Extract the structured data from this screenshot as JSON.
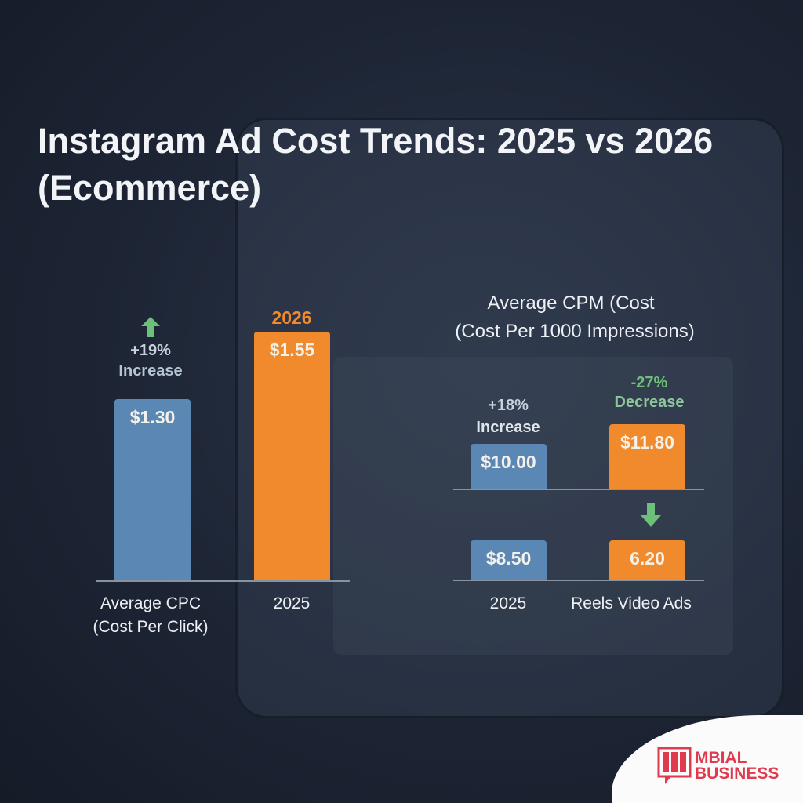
{
  "title": "Instagram Ad Cost Trends: 2025 vs 2026 (Ecommerce)",
  "colors": {
    "year_2025": "#5a87b3",
    "year_2026": "#f08a2c",
    "increase": "#6cc07a",
    "decrease": "#6cc07a",
    "logo": "#e03a4e"
  },
  "chart_data": [
    {
      "type": "bar",
      "category_label": [
        "Average CPC",
        "(Cost Per Click)"
      ],
      "x_label": "2025",
      "series_top_label": "2026",
      "series": [
        {
          "label": "$1.30",
          "value": 1.3,
          "color": "#5a87b3"
        },
        {
          "label": "$1.55",
          "value": 1.55,
          "color": "#f08a2c"
        }
      ],
      "change": {
        "percent": "+19%",
        "text": "Increase",
        "icon": "arrow-up-icon"
      }
    },
    {
      "type": "bar",
      "title": [
        "Average CPM (Cost",
        "(Cost Per 1000 Impressions)"
      ],
      "panels": [
        {
          "left": {
            "label": "$10.00",
            "value": 10.0
          },
          "right": {
            "label": "$11.80",
            "value": 11.8
          },
          "left_change": {
            "percent": "+18%",
            "text": "Increase"
          },
          "right_change": {
            "percent": "-27%",
            "text": "Decrease",
            "icon": "arrow-down-icon"
          }
        },
        {
          "left": {
            "label": "$8.50",
            "value": 8.5
          },
          "right": {
            "label": "6.20",
            "value": 6.2
          }
        }
      ],
      "x_labels": [
        "2025",
        "Reels Video Ads"
      ]
    }
  ],
  "logo": {
    "line1": "MBIAL",
    "line2": "BUSINESS"
  }
}
